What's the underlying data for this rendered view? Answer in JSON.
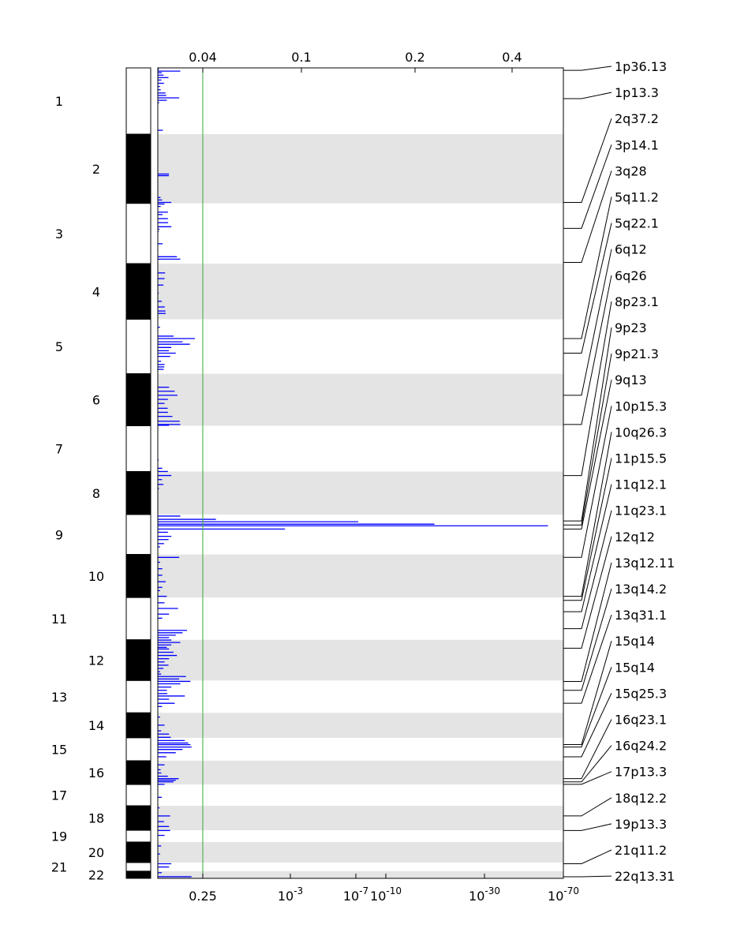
{
  "chart_data": {
    "type": "bar",
    "orientation": "horizontal",
    "title": "",
    "top_axis": {
      "tick_labels": [
        "0.04",
        "0.1",
        "0.2",
        "0.4"
      ],
      "tick_values": [
        0.04,
        0.1,
        0.2,
        0.4
      ]
    },
    "bottom_axis": {
      "tick_labels": [
        {
          "base": "0.25",
          "exp": ""
        },
        {
          "base": "10",
          "exp": "-3"
        },
        {
          "base": "10",
          "exp": "-7"
        },
        {
          "base": "10",
          "exp": "-10"
        },
        {
          "base": "10",
          "exp": "-30"
        },
        {
          "base": "10",
          "exp": "-70"
        }
      ],
      "tick_values": [
        0.25,
        0.001,
        1e-07,
        1e-10,
        1e-30,
        1e-70
      ]
    },
    "threshold": {
      "qvalue": 0.25,
      "color": "#33aa33"
    },
    "chromosomes": [
      {
        "label": "1",
        "start": 0.0,
        "end": 0.0818,
        "side": "outer"
      },
      {
        "label": "2",
        "start": 0.0818,
        "end": 0.1672,
        "side": "inner"
      },
      {
        "label": "3",
        "start": 0.1672,
        "end": 0.2416,
        "side": "outer"
      },
      {
        "label": "4",
        "start": 0.2416,
        "end": 0.3102,
        "side": "inner"
      },
      {
        "label": "5",
        "start": 0.3102,
        "end": 0.3774,
        "side": "outer"
      },
      {
        "label": "6",
        "start": 0.3774,
        "end": 0.4416,
        "side": "inner"
      },
      {
        "label": "7",
        "start": 0.4416,
        "end": 0.4981,
        "side": "outer"
      },
      {
        "label": "8",
        "start": 0.4981,
        "end": 0.5511,
        "side": "inner"
      },
      {
        "label": "9",
        "start": 0.5511,
        "end": 0.6004,
        "side": "outer"
      },
      {
        "label": "10",
        "start": 0.6004,
        "end": 0.6535,
        "side": "inner"
      },
      {
        "label": "11",
        "start": 0.6535,
        "end": 0.7057,
        "side": "outer"
      },
      {
        "label": "12",
        "start": 0.7057,
        "end": 0.7559,
        "side": "inner"
      },
      {
        "label": "13",
        "start": 0.7559,
        "end": 0.7958,
        "side": "outer"
      },
      {
        "label": "14",
        "start": 0.7958,
        "end": 0.8266,
        "side": "inner"
      },
      {
        "label": "15",
        "start": 0.8266,
        "end": 0.8549,
        "side": "outer"
      },
      {
        "label": "16",
        "start": 0.8549,
        "end": 0.8842,
        "side": "inner"
      },
      {
        "label": "17",
        "start": 0.8842,
        "end": 0.9105,
        "side": "outer"
      },
      {
        "label": "18",
        "start": 0.9105,
        "end": 0.9407,
        "side": "inner"
      },
      {
        "label": "19",
        "start": 0.9407,
        "end": 0.9552,
        "side": "outer"
      },
      {
        "label": "20",
        "start": 0.9552,
        "end": 0.9805,
        "side": "inner"
      },
      {
        "label": "21",
        "start": 0.9805,
        "end": 0.9912,
        "side": "outer"
      },
      {
        "label": "22",
        "start": 0.9912,
        "end": 1.0,
        "side": "inner"
      }
    ],
    "peaks": [
      {
        "label": "1p36.13",
        "pos": 0.003
      },
      {
        "label": "1p13.3",
        "pos": 0.038
      },
      {
        "label": "2q37.2",
        "pos": 0.166
      },
      {
        "label": "3p14.1",
        "pos": 0.198
      },
      {
        "label": "3q28",
        "pos": 0.24
      },
      {
        "label": "5q11.2",
        "pos": 0.334
      },
      {
        "label": "5q22.1",
        "pos": 0.352
      },
      {
        "label": "6q12",
        "pos": 0.404
      },
      {
        "label": "6q26",
        "pos": 0.44
      },
      {
        "label": "8p23.1",
        "pos": 0.503
      },
      {
        "label": "9p23",
        "pos": 0.559
      },
      {
        "label": "9p21.3",
        "pos": 0.564
      },
      {
        "label": "9q13",
        "pos": 0.569
      },
      {
        "label": "10p15.3",
        "pos": 0.604
      },
      {
        "label": "10q26.3",
        "pos": 0.652
      },
      {
        "label": "11p15.5",
        "pos": 0.657
      },
      {
        "label": "11q12.1",
        "pos": 0.671
      },
      {
        "label": "11q23.1",
        "pos": 0.692
      },
      {
        "label": "12q12",
        "pos": 0.716
      },
      {
        "label": "13q12.11",
        "pos": 0.757
      },
      {
        "label": "13q14.2",
        "pos": 0.768
      },
      {
        "label": "13q31.1",
        "pos": 0.784
      },
      {
        "label": "15q14",
        "pos": 0.835
      },
      {
        "label": "15q14",
        "pos": 0.838
      },
      {
        "label": "15q25.3",
        "pos": 0.85
      },
      {
        "label": "16q23.1",
        "pos": 0.877
      },
      {
        "label": "16q24.2",
        "pos": 0.881
      },
      {
        "label": "17p13.3",
        "pos": 0.884
      },
      {
        "label": "18q12.2",
        "pos": 0.923
      },
      {
        "label": "19p13.3",
        "pos": 0.941
      },
      {
        "label": "21q11.2",
        "pos": 0.982
      },
      {
        "label": "22q13.31",
        "pos": 0.998
      }
    ],
    "bars": [
      [
        0.0,
        0.0009
      ],
      [
        0.002,
        0.001
      ],
      [
        0.004,
        0.02
      ],
      [
        0.006,
        0.0035
      ],
      [
        0.009,
        0.0052
      ],
      [
        0.012,
        0.0095
      ],
      [
        0.015,
        0.0032
      ],
      [
        0.019,
        0.0055
      ],
      [
        0.023,
        0.0019
      ],
      [
        0.027,
        0.0026
      ],
      [
        0.031,
        0.0068
      ],
      [
        0.034,
        0.0075
      ],
      [
        0.037,
        0.019
      ],
      [
        0.04,
        0.008
      ],
      [
        0.043,
        0.0012
      ],
      [
        0.077,
        0.0045
      ],
      [
        0.131,
        0.01
      ],
      [
        0.133,
        0.0098
      ],
      [
        0.16,
        0.0024
      ],
      [
        0.163,
        0.0038
      ],
      [
        0.166,
        0.012
      ],
      [
        0.168,
        0.006
      ],
      [
        0.171,
        0.0025
      ],
      [
        0.178,
        0.009
      ],
      [
        0.181,
        0.0042
      ],
      [
        0.186,
        0.009
      ],
      [
        0.191,
        0.0092
      ],
      [
        0.196,
        0.012
      ],
      [
        0.199,
        0.0015
      ],
      [
        0.202,
        0.0008
      ],
      [
        0.217,
        0.0043
      ],
      [
        0.233,
        0.017
      ],
      [
        0.236,
        0.02
      ],
      [
        0.253,
        0.0065
      ],
      [
        0.26,
        0.006
      ],
      [
        0.268,
        0.005
      ],
      [
        0.278,
        0.0008
      ],
      [
        0.288,
        0.0035
      ],
      [
        0.295,
        0.0062
      ],
      [
        0.3,
        0.0068
      ],
      [
        0.303,
        0.007
      ],
      [
        0.32,
        0.0019
      ],
      [
        0.331,
        0.014
      ],
      [
        0.334,
        0.033
      ],
      [
        0.338,
        0.022
      ],
      [
        0.341,
        0.0285
      ],
      [
        0.345,
        0.012
      ],
      [
        0.349,
        0.0098
      ],
      [
        0.352,
        0.016
      ],
      [
        0.356,
        0.011
      ],
      [
        0.362,
        0.003
      ],
      [
        0.366,
        0.006
      ],
      [
        0.369,
        0.0058
      ],
      [
        0.372,
        0.0052
      ],
      [
        0.394,
        0.01
      ],
      [
        0.399,
        0.015
      ],
      [
        0.404,
        0.0175
      ],
      [
        0.409,
        0.009
      ],
      [
        0.414,
        0.006
      ],
      [
        0.42,
        0.0088
      ],
      [
        0.425,
        0.009
      ],
      [
        0.43,
        0.013
      ],
      [
        0.436,
        0.0195
      ],
      [
        0.44,
        0.02
      ],
      [
        0.441,
        0.01
      ],
      [
        0.484,
        0.0004
      ],
      [
        0.494,
        0.004
      ],
      [
        0.498,
        0.009
      ],
      [
        0.503,
        0.012
      ],
      [
        0.508,
        0.0038
      ],
      [
        0.514,
        0.005
      ],
      [
        0.519,
        0.001
      ],
      [
        0.553,
        0.02
      ],
      [
        0.557,
        0.048
      ],
      [
        0.56,
        0.15
      ],
      [
        0.563,
        0.24
      ],
      [
        0.565,
        0.47
      ],
      [
        0.569,
        0.09
      ],
      [
        0.573,
        0.009
      ],
      [
        0.578,
        0.012
      ],
      [
        0.582,
        0.0095
      ],
      [
        0.587,
        0.0055
      ],
      [
        0.591,
        0.002
      ],
      [
        0.604,
        0.019
      ],
      [
        0.61,
        0.002
      ],
      [
        0.618,
        0.004
      ],
      [
        0.626,
        0.004
      ],
      [
        0.634,
        0.007
      ],
      [
        0.641,
        0.004
      ],
      [
        0.645,
        0.002
      ],
      [
        0.652,
        0.008
      ],
      [
        0.66,
        0.006
      ],
      [
        0.667,
        0.018
      ],
      [
        0.674,
        0.01
      ],
      [
        0.679,
        0.004
      ],
      [
        0.694,
        0.026
      ],
      [
        0.697,
        0.022
      ],
      [
        0.7,
        0.016
      ],
      [
        0.703,
        0.01
      ],
      [
        0.706,
        0.012
      ],
      [
        0.709,
        0.02
      ],
      [
        0.712,
        0.012
      ],
      [
        0.715,
        0.008
      ],
      [
        0.717,
        0.01
      ],
      [
        0.721,
        0.014
      ],
      [
        0.725,
        0.017
      ],
      [
        0.729,
        0.01
      ],
      [
        0.733,
        0.006
      ],
      [
        0.737,
        0.0095
      ],
      [
        0.741,
        0.005
      ],
      [
        0.745,
        0.002
      ],
      [
        0.748,
        0.003
      ],
      [
        0.751,
        0.025
      ],
      [
        0.754,
        0.019
      ],
      [
        0.757,
        0.029
      ],
      [
        0.76,
        0.02
      ],
      [
        0.764,
        0.012
      ],
      [
        0.768,
        0.008
      ],
      [
        0.772,
        0.0085
      ],
      [
        0.775,
        0.024
      ],
      [
        0.779,
        0.01
      ],
      [
        0.784,
        0.015
      ],
      [
        0.788,
        0.0038
      ],
      [
        0.801,
        0.002
      ],
      [
        0.811,
        0.006
      ],
      [
        0.818,
        0.003
      ],
      [
        0.822,
        0.01
      ],
      [
        0.826,
        0.0115
      ],
      [
        0.83,
        0.024
      ],
      [
        0.833,
        0.027
      ],
      [
        0.835,
        0.029
      ],
      [
        0.838,
        0.03
      ],
      [
        0.841,
        0.022
      ],
      [
        0.845,
        0.016
      ],
      [
        0.85,
        0.0075
      ],
      [
        0.86,
        0.006
      ],
      [
        0.866,
        0.0025
      ],
      [
        0.87,
        0.0032
      ],
      [
        0.874,
        0.009
      ],
      [
        0.877,
        0.0185
      ],
      [
        0.879,
        0.016
      ],
      [
        0.881,
        0.014
      ],
      [
        0.884,
        0.006
      ],
      [
        0.9,
        0.0035
      ],
      [
        0.913,
        0.0015
      ],
      [
        0.923,
        0.011
      ],
      [
        0.93,
        0.0055
      ],
      [
        0.936,
        0.01
      ],
      [
        0.941,
        0.011
      ],
      [
        0.947,
        0.006
      ],
      [
        0.96,
        0.003
      ],
      [
        0.97,
        0.002
      ],
      [
        0.982,
        0.012
      ],
      [
        0.986,
        0.01
      ],
      [
        0.993,
        0.0035
      ],
      [
        0.998,
        0.03
      ]
    ],
    "colors": {
      "bar": "#0000ff",
      "band_stripe": "#e4e4e4",
      "ideogram_dark": "#000000",
      "axis": "#000000",
      "threshold": "#33aa33"
    }
  }
}
